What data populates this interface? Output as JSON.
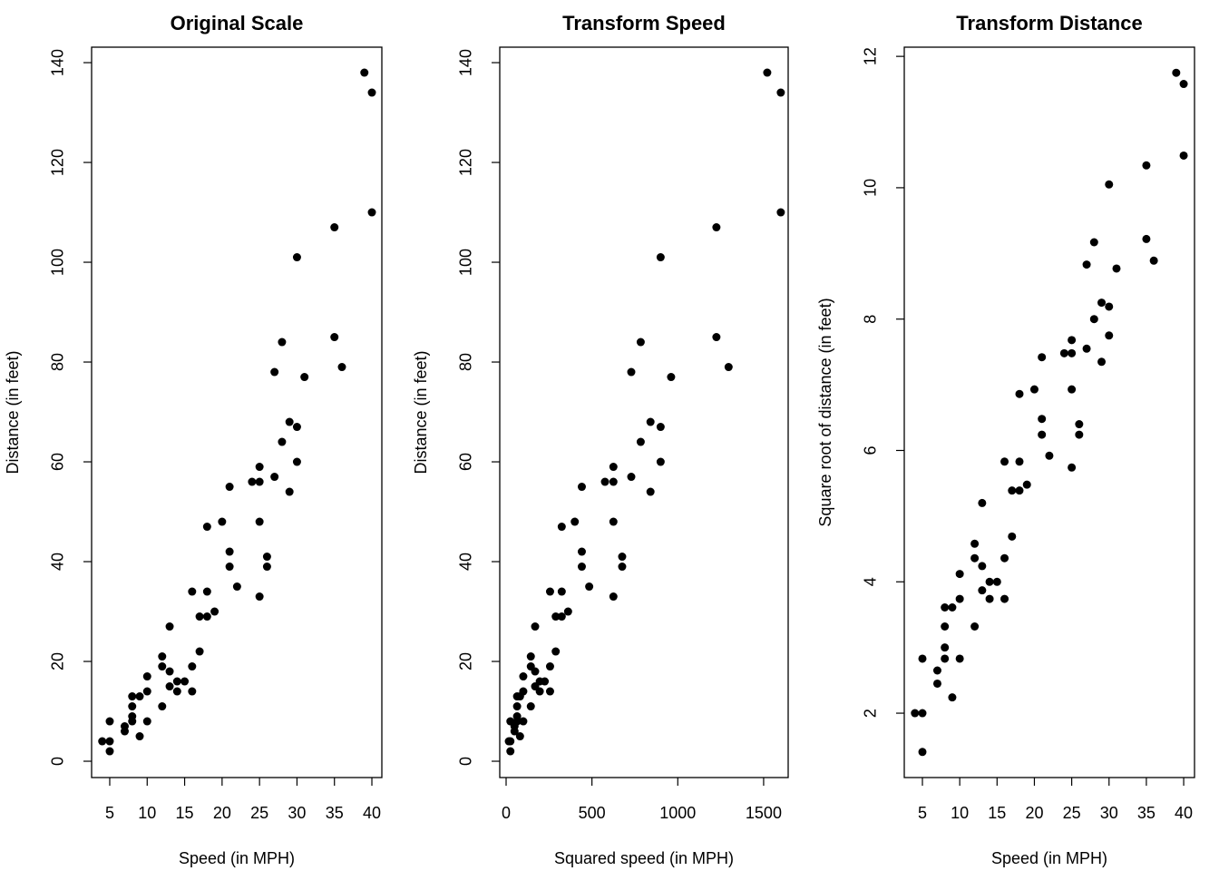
{
  "chart_data": [
    {
      "type": "scatter",
      "title": "Original Scale",
      "xlabel": "Speed (in MPH)",
      "ylabel": "Distance (in feet)",
      "color": "#000000",
      "x": [
        4,
        5,
        5,
        5,
        7,
        7,
        8,
        8,
        8,
        8,
        9,
        9,
        10,
        10,
        10,
        12,
        12,
        12,
        13,
        13,
        13,
        14,
        14,
        15,
        16,
        16,
        16,
        17,
        17,
        18,
        18,
        18,
        19,
        20,
        21,
        21,
        21,
        22,
        24,
        25,
        25,
        25,
        25,
        26,
        26,
        27,
        27,
        28,
        28,
        29,
        29,
        30,
        30,
        30,
        31,
        35,
        35,
        36,
        39,
        40,
        40
      ],
      "y": [
        4,
        4,
        8,
        2,
        7,
        6,
        11,
        13,
        8,
        9,
        13,
        5,
        17,
        14,
        8,
        21,
        19,
        11,
        27,
        18,
        15,
        14,
        16,
        16,
        34,
        19,
        14,
        29,
        22,
        47,
        34,
        29,
        30,
        48,
        55,
        42,
        39,
        35,
        56,
        59,
        56,
        48,
        33,
        41,
        39,
        78,
        57,
        84,
        64,
        68,
        54,
        101,
        67,
        60,
        77,
        107,
        85,
        79,
        138,
        134,
        110
      ],
      "xlim": [
        2.58,
        41.33
      ],
      "ylim": [
        -3.27,
        143.1
      ],
      "xticks": [
        5,
        10,
        15,
        20,
        25,
        30,
        35,
        40
      ],
      "yticks": [
        0,
        20,
        40,
        60,
        80,
        100,
        120,
        140
      ]
    },
    {
      "type": "scatter",
      "title": "Transform Speed",
      "xlabel": "Squared speed (in MPH)",
      "ylabel": "Distance (in feet)",
      "color": "#000000",
      "x": [
        16,
        25,
        25,
        25,
        49,
        49,
        64,
        64,
        64,
        64,
        81,
        81,
        100,
        100,
        100,
        144,
        144,
        144,
        169,
        169,
        169,
        196,
        196,
        225,
        256,
        256,
        256,
        289,
        289,
        324,
        324,
        324,
        361,
        400,
        441,
        441,
        441,
        484,
        576,
        625,
        625,
        625,
        625,
        676,
        676,
        729,
        729,
        784,
        784,
        841,
        841,
        900,
        900,
        900,
        961,
        1225,
        1225,
        1296,
        1521,
        1600,
        1600
      ],
      "y": [
        4,
        4,
        8,
        2,
        7,
        6,
        11,
        13,
        8,
        9,
        13,
        5,
        17,
        14,
        8,
        21,
        19,
        11,
        27,
        18,
        15,
        14,
        16,
        16,
        34,
        19,
        14,
        29,
        22,
        47,
        34,
        29,
        30,
        48,
        55,
        42,
        39,
        35,
        56,
        59,
        56,
        48,
        33,
        41,
        39,
        78,
        57,
        84,
        64,
        68,
        54,
        101,
        67,
        60,
        77,
        107,
        85,
        79,
        138,
        134,
        110
      ],
      "xlim": [
        -37,
        1643
      ],
      "ylim": [
        -3.27,
        143.1
      ],
      "xticks": [
        0,
        500,
        1000,
        1500
      ],
      "yticks": [
        0,
        20,
        40,
        60,
        80,
        100,
        120,
        140
      ]
    },
    {
      "type": "scatter",
      "title": "Transform Distance",
      "xlabel": "Speed (in MPH)",
      "ylabel": "Square root of distance (in feet)",
      "color": "#000000",
      "x": [
        4,
        5,
        5,
        5,
        7,
        7,
        8,
        8,
        8,
        8,
        9,
        9,
        10,
        10,
        10,
        12,
        12,
        12,
        13,
        13,
        13,
        14,
        14,
        15,
        16,
        16,
        16,
        17,
        17,
        18,
        18,
        18,
        19,
        20,
        21,
        21,
        21,
        22,
        24,
        25,
        25,
        25,
        25,
        26,
        26,
        27,
        27,
        28,
        28,
        29,
        29,
        30,
        30,
        30,
        31,
        35,
        35,
        36,
        39,
        40,
        40
      ],
      "y": [
        2,
        2,
        2.83,
        1.41,
        2.65,
        2.45,
        3.32,
        3.61,
        2.83,
        3,
        3.61,
        2.24,
        4.12,
        3.74,
        2.83,
        4.58,
        4.36,
        3.32,
        5.2,
        4.24,
        3.87,
        3.74,
        4,
        4,
        5.83,
        4.36,
        3.74,
        5.39,
        4.69,
        6.86,
        5.83,
        5.39,
        5.48,
        6.93,
        7.42,
        6.48,
        6.24,
        5.92,
        7.48,
        7.68,
        7.48,
        6.93,
        5.74,
        6.4,
        6.24,
        8.83,
        7.55,
        9.17,
        8,
        8.25,
        7.35,
        10.05,
        8.19,
        7.75,
        8.77,
        10.34,
        9.22,
        8.89,
        11.75,
        11.58,
        10.49
      ],
      "xlim": [
        2.57,
        41.45
      ],
      "ylim": [
        1.02,
        12.14
      ],
      "xticks": [
        5,
        10,
        15,
        20,
        25,
        30,
        35,
        40
      ],
      "yticks": [
        2,
        4,
        6,
        8,
        10,
        12
      ]
    }
  ]
}
